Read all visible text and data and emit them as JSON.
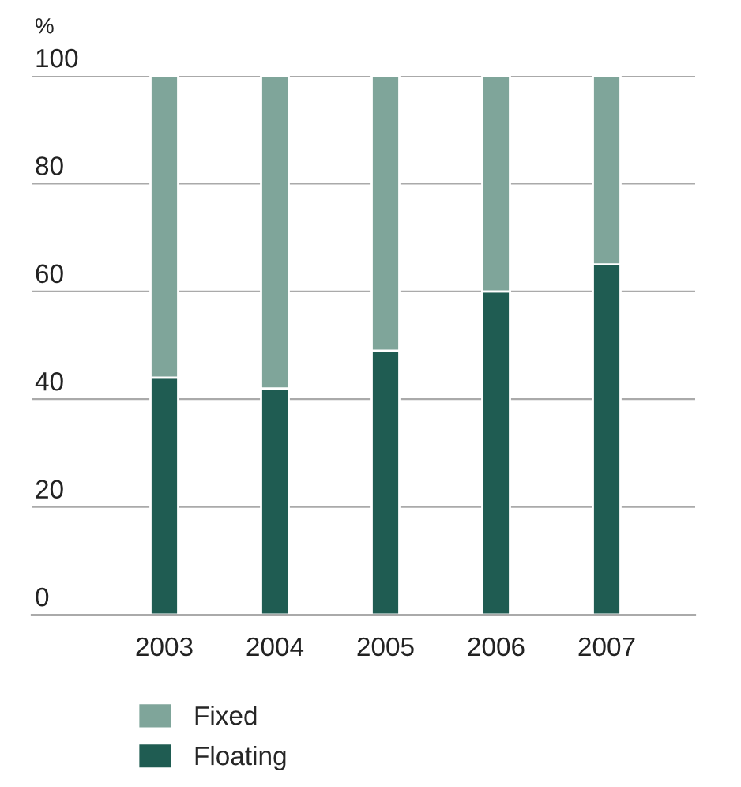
{
  "chart_data": {
    "type": "bar",
    "stacked": true,
    "ylabel": "%",
    "categories": [
      "2003",
      "2004",
      "2005",
      "2006",
      "2007"
    ],
    "series": [
      {
        "name": "Floating",
        "color": "#1f5c52",
        "values": [
          44,
          42,
          49,
          60,
          65
        ]
      },
      {
        "name": "Fixed",
        "color": "#7fa59a",
        "values": [
          56,
          58,
          51,
          40,
          35
        ]
      }
    ],
    "ylim": [
      0,
      100
    ],
    "yticks": [
      0,
      20,
      40,
      60,
      80,
      100
    ],
    "grid": "y",
    "legend": "bottom"
  }
}
